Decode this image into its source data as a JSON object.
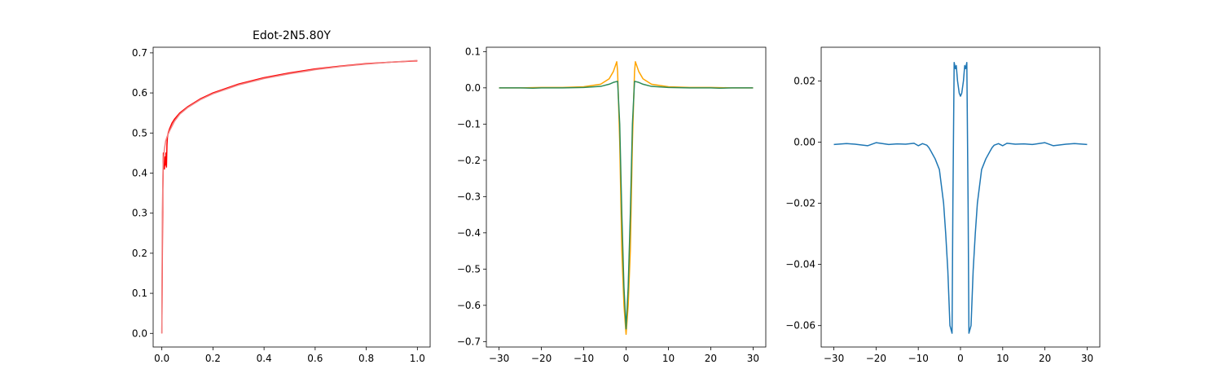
{
  "chart_data": [
    {
      "type": "line",
      "title": "Edot-2N5.80Y",
      "xlabel": "",
      "ylabel": "",
      "xlim": [
        -0.034,
        1.05
      ],
      "ylim": [
        -0.034,
        0.714
      ],
      "xticks": [
        0.0,
        0.2,
        0.4,
        0.6,
        0.8,
        1.0
      ],
      "xtick_labels": [
        "0.0",
        "0.2",
        "0.4",
        "0.6",
        "0.8",
        "1.0"
      ],
      "yticks": [
        0.0,
        0.1,
        0.2,
        0.3,
        0.4,
        0.5,
        0.6,
        0.7
      ],
      "ytick_labels": [
        "0.0",
        "0.1",
        "0.2",
        "0.3",
        "0.4",
        "0.5",
        "0.6",
        "0.7"
      ],
      "grid": false,
      "series": [
        {
          "color": "#ff0000",
          "x": [
            0.0,
            0.002,
            0.004,
            0.006,
            0.008,
            0.01,
            0.012,
            0.014,
            0.016,
            0.018,
            0.02,
            0.022,
            0.025,
            0.03,
            0.04,
            0.05,
            0.07,
            0.1,
            0.15,
            0.2,
            0.3,
            0.4,
            0.5,
            0.6,
            0.7,
            0.8,
            0.9,
            1.0
          ],
          "y": [
            0.0,
            0.2,
            0.36,
            0.45,
            0.43,
            0.41,
            0.44,
            0.42,
            0.45,
            0.415,
            0.47,
            0.49,
            0.5,
            0.51,
            0.525,
            0.535,
            0.55,
            0.565,
            0.585,
            0.6,
            0.622,
            0.638,
            0.65,
            0.66,
            0.667,
            0.673,
            0.677,
            0.68
          ]
        },
        {
          "color": "#f08080",
          "x": [
            0.0,
            0.002,
            0.005,
            0.01,
            0.015,
            0.02,
            0.03,
            0.05,
            0.07,
            0.1,
            0.15,
            0.2,
            0.3,
            0.4,
            0.5,
            0.6,
            0.7,
            0.8,
            0.9,
            1.0
          ],
          "y": [
            0.0,
            0.3,
            0.42,
            0.46,
            0.48,
            0.49,
            0.505,
            0.53,
            0.547,
            0.563,
            0.583,
            0.598,
            0.62,
            0.636,
            0.648,
            0.658,
            0.666,
            0.672,
            0.677,
            0.681
          ]
        }
      ]
    },
    {
      "type": "line",
      "title": "",
      "xlabel": "",
      "ylabel": "",
      "xlim": [
        -33,
        33
      ],
      "ylim": [
        -0.715,
        0.112
      ],
      "xticks": [
        -30,
        -20,
        -10,
        0,
        10,
        20,
        30
      ],
      "xtick_labels": [
        "−30",
        "−20",
        "−10",
        "0",
        "10",
        "20",
        "30"
      ],
      "yticks": [
        0.1,
        0.0,
        -0.1,
        -0.2,
        -0.3,
        -0.4,
        -0.5,
        -0.6,
        -0.7
      ],
      "ytick_labels": [
        "0.1",
        "0.0",
        "−0.1",
        "−0.2",
        "−0.3",
        "−0.4",
        "−0.5",
        "−0.6",
        "−0.7"
      ],
      "grid": false,
      "series": [
        {
          "color": "#ffa500",
          "x": [
            -30,
            -25,
            -20,
            -15,
            -10,
            -6,
            -4,
            -3,
            -2.2,
            -2,
            -1.5,
            -1,
            -0.5,
            0,
            0.5,
            1,
            1.5,
            2,
            2.2,
            3,
            4,
            6,
            10,
            15,
            20,
            25,
            30
          ],
          "y": [
            0.0,
            0.0,
            0.001,
            0.001,
            0.003,
            0.01,
            0.025,
            0.045,
            0.072,
            0.045,
            -0.15,
            -0.45,
            -0.6,
            -0.68,
            -0.6,
            -0.45,
            -0.15,
            0.045,
            0.072,
            0.045,
            0.025,
            0.01,
            0.003,
            0.001,
            0.001,
            0.0,
            0.0
          ]
        },
        {
          "color": "#2e8b57",
          "x": [
            -30,
            -25,
            -22,
            -20,
            -15,
            -10,
            -6,
            -4,
            -3,
            -2,
            -1.5,
            -1,
            -0.5,
            0,
            0.5,
            1,
            1.5,
            2,
            3,
            4,
            6,
            10,
            15,
            20,
            22,
            25,
            30
          ],
          "y": [
            0.0,
            0.0,
            -0.001,
            0.0,
            0.0,
            0.001,
            0.004,
            0.01,
            0.015,
            0.018,
            -0.1,
            -0.35,
            -0.55,
            -0.665,
            -0.55,
            -0.35,
            -0.1,
            0.018,
            0.015,
            0.01,
            0.004,
            0.001,
            0.0,
            0.0,
            -0.001,
            0.0,
            0.0
          ]
        }
      ]
    },
    {
      "type": "line",
      "title": "",
      "xlabel": "",
      "ylabel": "",
      "xlim": [
        -33,
        33
      ],
      "ylim": [
        -0.067,
        0.031
      ],
      "xticks": [
        -30,
        -20,
        -10,
        0,
        10,
        20,
        30
      ],
      "xtick_labels": [
        "−30",
        "−20",
        "−10",
        "0",
        "10",
        "20",
        "30"
      ],
      "yticks": [
        0.02,
        0.0,
        -0.02,
        -0.04,
        -0.06
      ],
      "ytick_labels": [
        "0.02",
        "0.00",
        "−0.02",
        "−0.04",
        "−0.06"
      ],
      "grid": false,
      "series": [
        {
          "color": "#1f77b4",
          "x": [
            -30,
            -27,
            -25,
            -22,
            -20,
            -17,
            -15,
            -13,
            -11,
            -10,
            -9,
            -8,
            -7.5,
            -7,
            -6,
            -5,
            -4,
            -3.5,
            -3,
            -2.5,
            -2,
            -1.8,
            -1.5,
            -1.2,
            -1,
            -0.7,
            -0.3,
            0,
            0.3,
            0.7,
            1,
            1.2,
            1.5,
            1.8,
            2,
            2.5,
            3,
            3.5,
            4,
            5,
            6,
            7,
            7.5,
            8,
            9,
            10,
            11,
            13,
            15,
            17,
            20,
            22,
            25,
            27,
            30
          ],
          "y": [
            -0.0008,
            -0.0005,
            -0.0007,
            -0.0012,
            -0.0002,
            -0.0008,
            -0.0006,
            -0.0007,
            -0.0004,
            -0.0012,
            -0.0005,
            -0.001,
            -0.0018,
            -0.003,
            -0.0055,
            -0.009,
            -0.02,
            -0.03,
            -0.042,
            -0.06,
            -0.0625,
            -0.02,
            0.026,
            0.024,
            0.025,
            0.02,
            0.016,
            0.015,
            0.016,
            0.02,
            0.025,
            0.024,
            0.026,
            -0.02,
            -0.0625,
            -0.06,
            -0.042,
            -0.03,
            -0.02,
            -0.009,
            -0.0055,
            -0.003,
            -0.0018,
            -0.001,
            -0.0005,
            -0.0012,
            -0.0004,
            -0.0007,
            -0.0006,
            -0.0008,
            -0.0002,
            -0.0012,
            -0.0007,
            -0.0005,
            -0.0008
          ]
        }
      ]
    }
  ]
}
